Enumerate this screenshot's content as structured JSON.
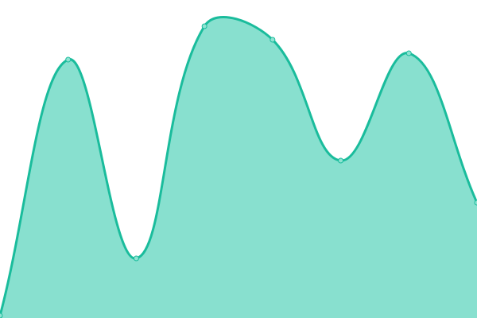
{
  "chart_data": {
    "type": "area",
    "title": "",
    "xlabel": "",
    "ylabel": "",
    "x": [
      0,
      1,
      2,
      3,
      4,
      5,
      6,
      7
    ],
    "values": [
      3,
      325,
      75,
      367,
      350,
      198,
      333,
      145
    ],
    "ylim": [
      0,
      400
    ],
    "grid": false,
    "legend": "none",
    "smooth": true,
    "colors": {
      "line": "#1abc9c",
      "fill": "#88e0cf",
      "point_fill": "#8fe3d2"
    }
  }
}
